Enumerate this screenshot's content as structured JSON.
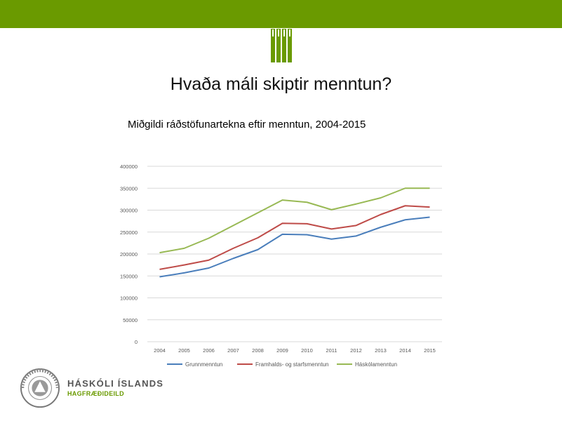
{
  "header": {
    "title": "Hvaða máli skiptir menntun?",
    "accent_color": "#6a9a00",
    "logo_icon": "pillars-icon"
  },
  "footer": {
    "university": "HÁSKÓLI ÍSLANDS",
    "department": "HAGFRÆÐIDEILD",
    "seal_icon": "university-seal-icon",
    "seal_text": "UNIVERSITATIS ISLANDIAE SIGILLUM"
  },
  "chart_data": {
    "type": "line",
    "title": "Miðgildi ráðstöfunartekna eftir menntun, 2004-2015",
    "x": [
      "2004",
      "2005",
      "2006",
      "2007",
      "2008",
      "2009",
      "2010",
      "2011",
      "2012",
      "2013",
      "2014",
      "2015"
    ],
    "ylim": [
      0,
      400000
    ],
    "yticks": [
      "0",
      "50000",
      "100000",
      "150000",
      "200000",
      "250000",
      "300000",
      "350000",
      "400000"
    ],
    "grid": true,
    "legend": "bottom",
    "series": [
      {
        "name": "Grunnmenntun",
        "color": "#4a7ebb",
        "values": [
          148000,
          157000,
          168000,
          190000,
          210000,
          245000,
          244000,
          234000,
          241000,
          261000,
          278000,
          284000
        ]
      },
      {
        "name": "Framhalds- og starfsmenntun",
        "color": "#be4b48",
        "values": [
          165000,
          175000,
          186000,
          213000,
          237000,
          270000,
          269000,
          257000,
          265000,
          290000,
          310000,
          307000
        ]
      },
      {
        "name": "Háskólamenntun",
        "color": "#98b954",
        "values": [
          203000,
          213000,
          236000,
          265000,
          294000,
          323000,
          318000,
          301000,
          314000,
          328000,
          350000,
          350000
        ]
      }
    ]
  }
}
